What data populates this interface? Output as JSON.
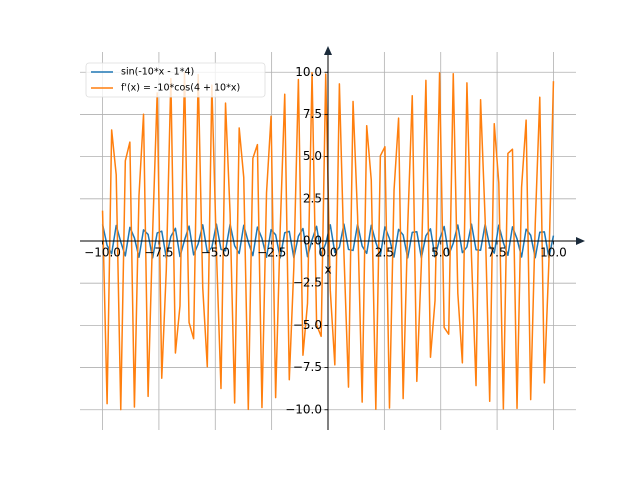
{
  "chart_data": {
    "type": "line",
    "x": [
      -10,
      -9.798,
      -9.596,
      -9.394,
      -9.192,
      -8.99,
      -8.788,
      -8.586,
      -8.384,
      -8.182,
      -7.98,
      -7.778,
      -7.576,
      -7.374,
      -7.172,
      -6.97,
      -6.768,
      -6.566,
      -6.364,
      -6.162,
      -5.96,
      -5.758,
      -5.556,
      -5.354,
      -5.152,
      -4.949,
      -4.747,
      -4.545,
      -4.343,
      -4.141,
      -3.939,
      -3.737,
      -3.535,
      -3.333,
      -3.131,
      -2.929,
      -2.727,
      -2.525,
      -2.323,
      -2.121,
      -1.919,
      -1.717,
      -1.515,
      -1.313,
      -1.111,
      -0.909,
      -0.707,
      -0.505,
      -0.303,
      -0.101,
      0.101,
      0.303,
      0.505,
      0.707,
      0.909,
      1.111,
      1.313,
      1.515,
      1.717,
      1.919,
      2.121,
      2.323,
      2.525,
      2.727,
      2.929,
      3.131,
      3.333,
      3.535,
      3.737,
      3.939,
      4.141,
      4.343,
      4.545,
      4.747,
      4.949,
      5.152,
      5.354,
      5.556,
      5.758,
      5.96,
      6.162,
      6.364,
      6.566,
      6.768,
      6.97,
      7.172,
      7.374,
      7.576,
      7.778,
      7.98,
      8.182,
      8.384,
      8.586,
      8.788,
      8.99,
      9.192,
      9.394,
      9.596,
      9.798,
      10
    ],
    "series": [
      {
        "name": "sin(-10*x - 1*4)",
        "color": "#1f77b4",
        "values": [
          0.98,
          -0.26,
          -0.75,
          0.92,
          -0.05,
          -0.88,
          0.81,
          0.18,
          -0.96,
          0.66,
          0.39,
          -1.0,
          0.48,
          0.58,
          -0.99,
          0.27,
          0.75,
          -0.92,
          0.05,
          0.88,
          -0.82,
          -0.17,
          0.96,
          -0.67,
          -0.38,
          1.0,
          -0.49,
          -0.58,
          0.99,
          -0.28,
          -0.74,
          0.93,
          -0.06,
          -0.87,
          0.82,
          0.16,
          -0.96,
          0.67,
          0.37,
          -1.0,
          0.49,
          0.57,
          -0.99,
          0.29,
          0.74,
          -0.93,
          0.07,
          0.87,
          -0.82,
          -0.15,
          0.96,
          -0.68,
          -0.37,
          1.0,
          -0.5,
          -0.56,
          0.99,
          -0.3,
          -0.73,
          0.93,
          -0.08,
          -0.86,
          0.83,
          0.14,
          -0.95,
          0.69,
          0.36,
          -1.0,
          0.51,
          0.55,
          -0.99,
          0.31,
          0.72,
          -0.94,
          0.09,
          0.86,
          -0.83,
          -0.13,
          0.95,
          -0.69,
          -0.35,
          1.0,
          -0.52,
          -0.55,
          0.99,
          -0.31,
          -0.72,
          0.94,
          -0.1,
          -0.85,
          0.84,
          0.13,
          -0.95,
          0.7,
          0.34,
          -0.99,
          0.52,
          0.54,
          -0.99,
          0.32
        ]
      },
      {
        "name": "f'(x) = -10*cos(4 + 10*x)",
        "color": "#ff7f0e",
        "values": [
          1.8,
          -9.64,
          6.58,
          3.93,
          -9.99,
          4.75,
          5.86,
          -9.84,
          2.69,
          7.51,
          -9.21,
          0.5,
          8.78,
          -8.13,
          -1.71,
          9.62,
          -6.64,
          -3.85,
          9.99,
          -4.83,
          -5.79,
          9.86,
          -2.77,
          -7.45,
          9.24,
          -0.58,
          -8.74,
          8.17,
          1.63,
          -9.6,
          6.7,
          3.77,
          -9.98,
          4.9,
          5.71,
          -9.87,
          2.85,
          7.39,
          -9.28,
          0.67,
          8.7,
          -8.22,
          -1.55,
          9.57,
          -6.77,
          -3.69,
          9.97,
          -4.97,
          -5.65,
          9.89,
          -2.93,
          -7.34,
          9.31,
          -0.75,
          -8.66,
          8.27,
          1.46,
          -9.55,
          6.83,
          3.61,
          -9.97,
          5.05,
          5.58,
          -9.9,
          3.01,
          7.28,
          -9.34,
          0.84,
          8.61,
          -8.32,
          -1.38,
          9.52,
          -6.89,
          -3.54,
          9.96,
          -5.12,
          -5.52,
          9.91,
          -3.1,
          -7.22,
          9.37,
          -0.92,
          -8.57,
          8.37,
          1.29,
          -9.5,
          6.95,
          3.45,
          -9.95,
          5.19,
          5.44,
          -9.92,
          3.18,
          7.16,
          -9.4,
          1.0,
          8.52,
          -8.41,
          -1.22,
          9.47
        ]
      }
    ],
    "xlabel": "x",
    "xlim": [
      -11,
      11
    ],
    "ylim": [
      -11.2,
      11.2
    ],
    "xticks": [
      {
        "value": -10,
        "label": "−10.0"
      },
      {
        "value": -7.5,
        "label": "−7.5"
      },
      {
        "value": -5,
        "label": "−5.0"
      },
      {
        "value": -2.5,
        "label": "−2.5"
      },
      {
        "value": 0,
        "label": "0.0"
      },
      2.5,
      {
        "value": 5,
        "label": "5.0"
      },
      7.5,
      {
        "value": 10,
        "label": "10.0"
      }
    ],
    "yticks": [
      {
        "value": -10,
        "label": "−10.0"
      },
      {
        "value": -7.5,
        "label": "−7.5"
      },
      {
        "value": -5,
        "label": "−5.0"
      },
      {
        "value": -2.5,
        "label": "−2.5"
      },
      {
        "value": 0,
        "label": "0.0"
      },
      2.5,
      {
        "value": 5,
        "label": "5.0"
      },
      7.5,
      {
        "value": 10,
        "label": "10.0"
      }
    ],
    "grid": true,
    "legend": "upper left"
  }
}
